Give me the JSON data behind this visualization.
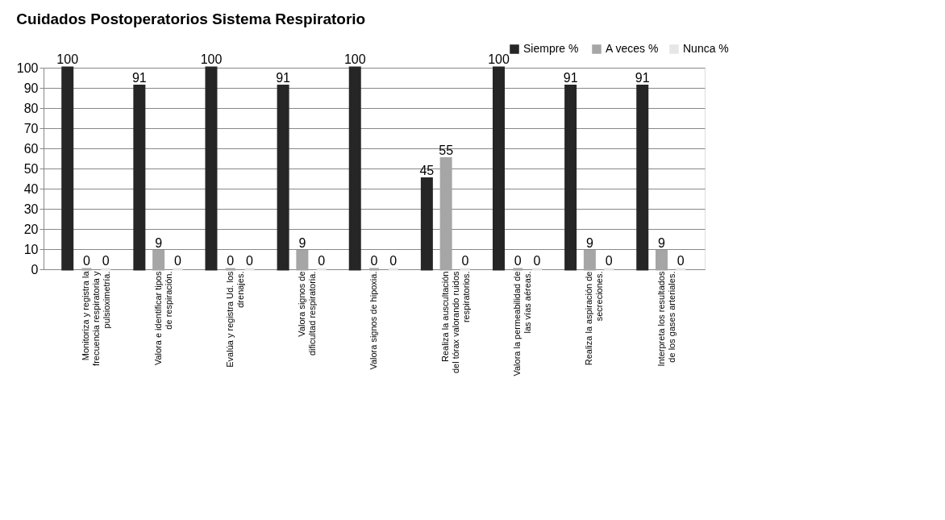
{
  "chart_data": {
    "type": "bar",
    "title": "Cuidados   Postoperatorios Sistema Respiratorio",
    "categories": [
      "Monitoriza y registra la frecuencia respiratoria y pulsioximetría.",
      "Valora e identificar tipos de respiración.",
      "Evalúa y registra Ud. los drenajes.",
      "Valora signos de dificultad respiratoria.",
      "Valora signos de hipoxia.",
      "Realiza la auscultación del tórax valorando ruidos respiratorios.",
      "Valora la permeabilidad de las vías aéreas.",
      "Realiza la aspiración de secreciones.",
      "Interpreta los resultados de los gases arteriales."
    ],
    "series": [
      {
        "name": "Siempre  %",
        "color": "#262626",
        "values": [
          100,
          91,
          100,
          91,
          100,
          45,
          100,
          91,
          91
        ]
      },
      {
        "name": "A veces %",
        "color": "#a6a6a6",
        "values": [
          0,
          9,
          0,
          9,
          0,
          55,
          0,
          9,
          9
        ]
      },
      {
        "name": "Nunca %",
        "color": "#e6e6e6",
        "values": [
          0,
          0,
          0,
          0,
          0,
          0,
          0,
          0,
          0
        ]
      }
    ],
    "ylim": [
      0,
      100
    ],
    "yticks": [
      0,
      10,
      20,
      30,
      40,
      50,
      60,
      70,
      80,
      90,
      100
    ],
    "grid": "y",
    "legend": "top right",
    "data_labels": true
  }
}
